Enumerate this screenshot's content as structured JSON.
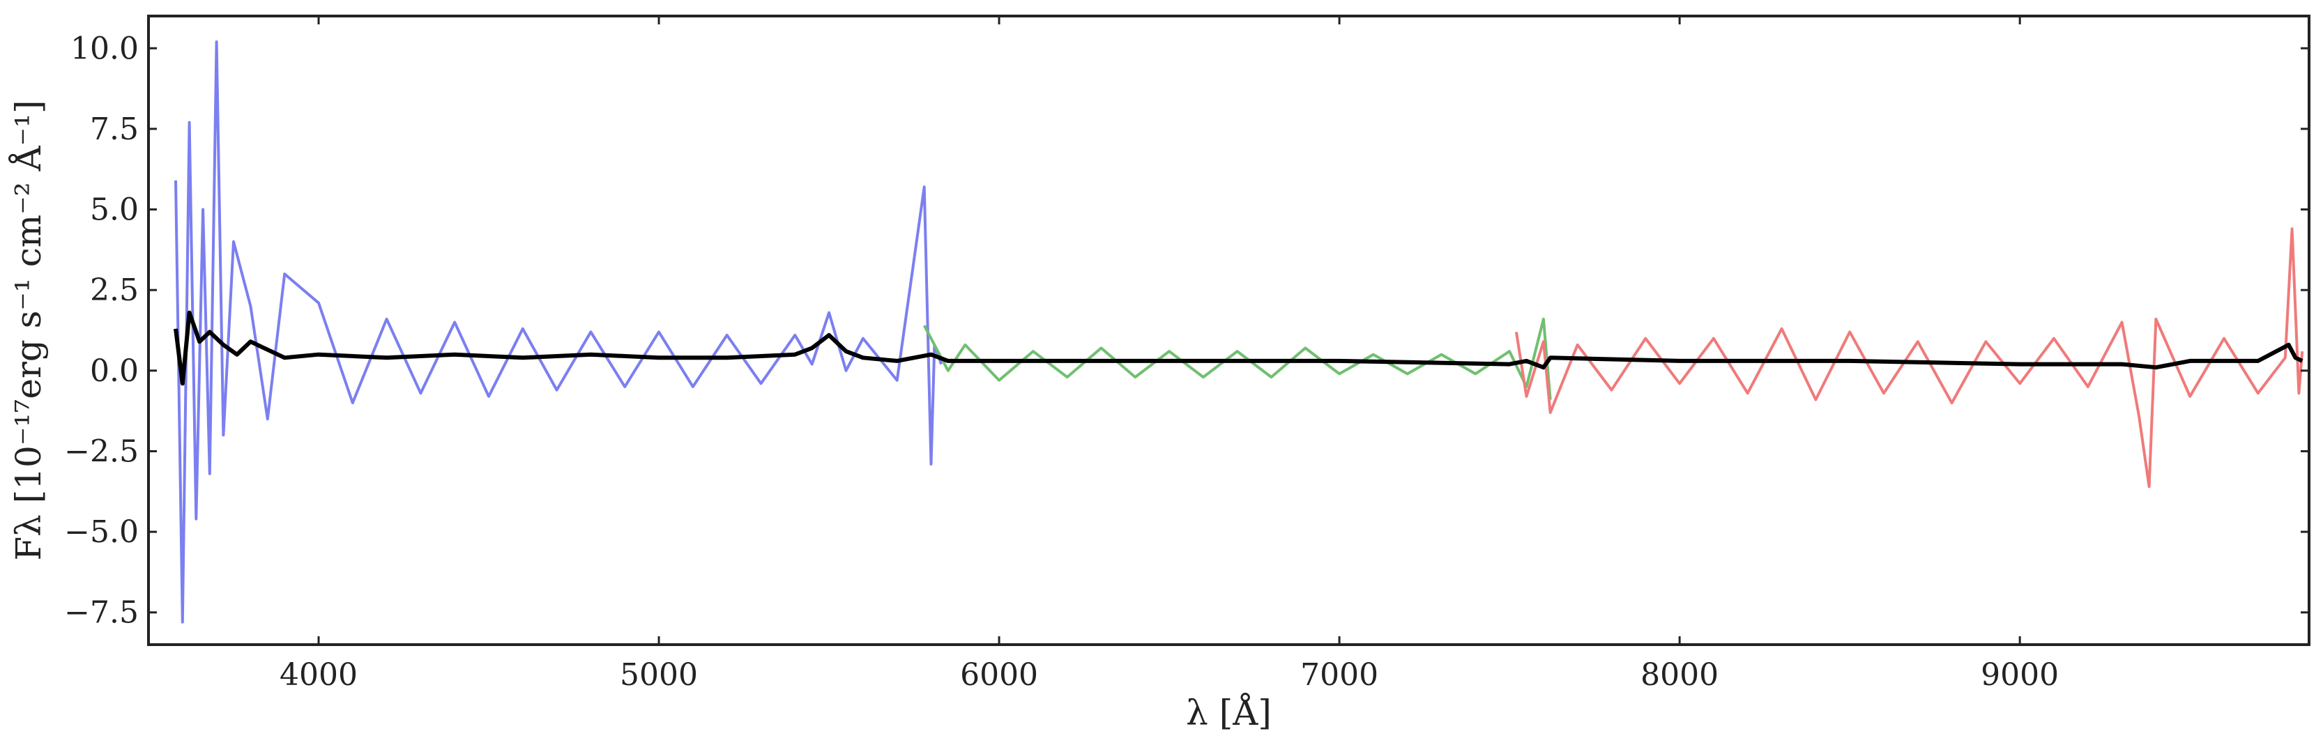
{
  "chart_data": {
    "type": "line",
    "xlabel": "λ [Å]",
    "ylabel": "Fλ [10⁻¹⁷erg s⁻¹ cm⁻² Å⁻¹]",
    "xlim": [
      3500,
      9850
    ],
    "ylim": [
      -8.5,
      11.0
    ],
    "x_ticks": [
      4000,
      5000,
      6000,
      7000,
      8000,
      9000
    ],
    "y_ticks": [
      10.0,
      7.5,
      5.0,
      2.5,
      0.0,
      -2.5,
      -5.0,
      -7.5
    ],
    "x_tick_labels": [
      "4000",
      "5000",
      "6000",
      "7000",
      "8000",
      "9000"
    ],
    "y_tick_labels": [
      "10.0",
      "7.5",
      "5.0",
      "2.5",
      "0.0",
      "−2.5",
      "−5.0",
      "−7.5"
    ],
    "grid": false,
    "colors": {
      "blue": "#7b7ff0",
      "green": "#70bf70",
      "red": "#f07a7a",
      "overlap": "#a85a4a",
      "smoothed": "#000000",
      "axes": "#222222"
    },
    "series": [
      {
        "color_key": "blue",
        "x": [
          3580,
          3600,
          3620,
          3640,
          3660,
          3680,
          3700,
          3720,
          3750,
          3800,
          3850,
          3900,
          4000,
          4100,
          4200,
          4300,
          4400,
          4500,
          4600,
          4700,
          4800,
          4900,
          5000,
          5100,
          5200,
          5300,
          5400,
          5450,
          5500,
          5550,
          5600,
          5700,
          5780,
          5800,
          5810,
          5830
        ],
        "y": [
          5.9,
          -7.8,
          7.7,
          -4.6,
          5.0,
          -3.2,
          10.2,
          -2.0,
          4.0,
          2.0,
          -1.5,
          3.0,
          2.1,
          -1.0,
          1.6,
          -0.7,
          1.5,
          -0.8,
          1.3,
          -0.6,
          1.2,
          -0.5,
          1.2,
          -0.5,
          1.1,
          -0.4,
          1.1,
          0.2,
          1.8,
          0.0,
          1.0,
          -0.3,
          5.7,
          -2.9,
          0.8,
          0.2
        ]
      },
      {
        "color_key": "green",
        "x": [
          5780,
          5850,
          5900,
          6000,
          6100,
          6200,
          6300,
          6400,
          6500,
          6600,
          6700,
          6800,
          6900,
          7000,
          7100,
          7200,
          7300,
          7400,
          7500,
          7550,
          7600,
          7620
        ],
        "y": [
          1.4,
          0.0,
          0.8,
          -0.3,
          0.6,
          -0.2,
          0.7,
          -0.2,
          0.6,
          -0.2,
          0.6,
          -0.2,
          0.7,
          -0.1,
          0.5,
          -0.1,
          0.5,
          -0.1,
          0.6,
          -0.5,
          1.6,
          -0.9
        ]
      },
      {
        "color_key": "red",
        "x": [
          7520,
          7550,
          7600,
          7620,
          7700,
          7800,
          7900,
          8000,
          8100,
          8200,
          8300,
          8400,
          8500,
          8600,
          8700,
          8800,
          8900,
          9000,
          9100,
          9200,
          9300,
          9350,
          9380,
          9400,
          9500,
          9600,
          9700,
          9780,
          9800,
          9820,
          9830
        ],
        "y": [
          1.2,
          -0.8,
          0.9,
          -1.3,
          0.8,
          -0.6,
          1.0,
          -0.4,
          1.0,
          -0.7,
          1.3,
          -0.9,
          1.2,
          -0.7,
          0.9,
          -1.0,
          0.9,
          -0.4,
          1.0,
          -0.5,
          1.5,
          -1.4,
          -3.6,
          1.6,
          -0.8,
          1.0,
          -0.7,
          0.4,
          4.4,
          -0.7,
          0.6
        ]
      },
      {
        "color_key": "smoothed",
        "x": [
          3580,
          3600,
          3620,
          3650,
          3680,
          3720,
          3760,
          3800,
          3900,
          4000,
          4200,
          4400,
          4600,
          4800,
          5000,
          5200,
          5400,
          5450,
          5500,
          5550,
          5600,
          5700,
          5800,
          5850,
          6000,
          6500,
          7000,
          7500,
          7550,
          7600,
          7620,
          8000,
          8500,
          9000,
          9300,
          9400,
          9500,
          9700,
          9790,
          9810,
          9830
        ],
        "y": [
          1.3,
          -0.4,
          1.8,
          0.9,
          1.2,
          0.8,
          0.5,
          0.9,
          0.4,
          0.5,
          0.4,
          0.5,
          0.4,
          0.5,
          0.4,
          0.4,
          0.5,
          0.7,
          1.1,
          0.6,
          0.4,
          0.3,
          0.5,
          0.3,
          0.3,
          0.3,
          0.3,
          0.2,
          0.3,
          0.1,
          0.4,
          0.3,
          0.3,
          0.2,
          0.2,
          0.1,
          0.3,
          0.3,
          0.8,
          0.4,
          0.3
        ]
      }
    ]
  }
}
